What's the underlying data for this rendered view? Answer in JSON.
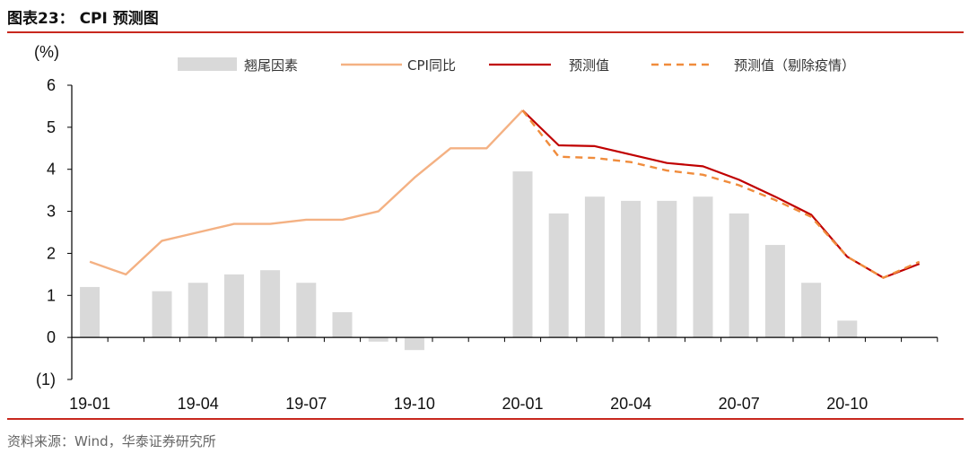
{
  "figure": {
    "title": "图表23： CPI 预测图",
    "source": "资料来源：Wind，华泰证券研究所"
  },
  "colors": {
    "bar": "#d9d9d9",
    "cpi_line": "#f4b183",
    "forecast_line": "#c00000",
    "forecast_excl_line": "#f08c3c",
    "rule": "#c8281e"
  },
  "chart_data": {
    "type": "bar+line",
    "unit_label": "(%)",
    "ylim": [
      -1,
      6
    ],
    "y_ticks": [
      6,
      5,
      4,
      3,
      2,
      1,
      0,
      -1
    ],
    "y_tick_labels": [
      "6",
      "5",
      "4",
      "3",
      "2",
      "1",
      "0",
      "(1)"
    ],
    "categories": [
      "19-01",
      "19-02",
      "19-03",
      "19-04",
      "19-05",
      "19-06",
      "19-07",
      "19-08",
      "19-09",
      "19-10",
      "19-11",
      "19-12",
      "20-01",
      "20-02",
      "20-03",
      "20-04",
      "20-05",
      "20-06",
      "20-07",
      "20-08",
      "20-09",
      "20-10",
      "20-11",
      "20-12"
    ],
    "x_tick_labels": [
      {
        "index": 0,
        "label": "19-01"
      },
      {
        "index": 3,
        "label": "19-04"
      },
      {
        "index": 6,
        "label": "19-07"
      },
      {
        "index": 9,
        "label": "19-10"
      },
      {
        "index": 12,
        "label": "20-01"
      },
      {
        "index": 15,
        "label": "20-04"
      },
      {
        "index": 18,
        "label": "20-07"
      },
      {
        "index": 21,
        "label": "20-10"
      }
    ],
    "series": [
      {
        "name": "翘尾因素",
        "type": "bar",
        "values": [
          1.2,
          null,
          1.1,
          1.3,
          1.5,
          1.6,
          1.3,
          0.6,
          -0.1,
          -0.3,
          null,
          null,
          3.95,
          2.95,
          3.35,
          3.25,
          3.25,
          3.35,
          2.95,
          2.2,
          1.3,
          0.4,
          null,
          null
        ]
      },
      {
        "name": "CPI同比",
        "type": "line",
        "values": [
          1.8,
          1.5,
          2.3,
          2.5,
          2.7,
          2.7,
          2.8,
          2.8,
          3.0,
          3.8,
          4.5,
          4.5,
          5.4,
          null,
          null,
          null,
          null,
          null,
          null,
          null,
          null,
          null,
          null,
          null
        ]
      },
      {
        "name": "预测值",
        "type": "line",
        "values": [
          null,
          null,
          null,
          null,
          null,
          null,
          null,
          null,
          null,
          null,
          null,
          null,
          5.4,
          4.57,
          4.55,
          4.35,
          4.15,
          4.07,
          3.75,
          3.35,
          2.92,
          1.92,
          1.42,
          1.75
        ]
      },
      {
        "name": "预测值（剔除疫情）",
        "type": "line",
        "dashed": true,
        "values": [
          null,
          null,
          null,
          null,
          null,
          null,
          null,
          null,
          null,
          null,
          null,
          null,
          5.4,
          4.3,
          4.27,
          4.17,
          3.97,
          3.87,
          3.62,
          3.27,
          2.87,
          1.92,
          1.42,
          1.8
        ]
      }
    ],
    "legend_position": "top"
  }
}
